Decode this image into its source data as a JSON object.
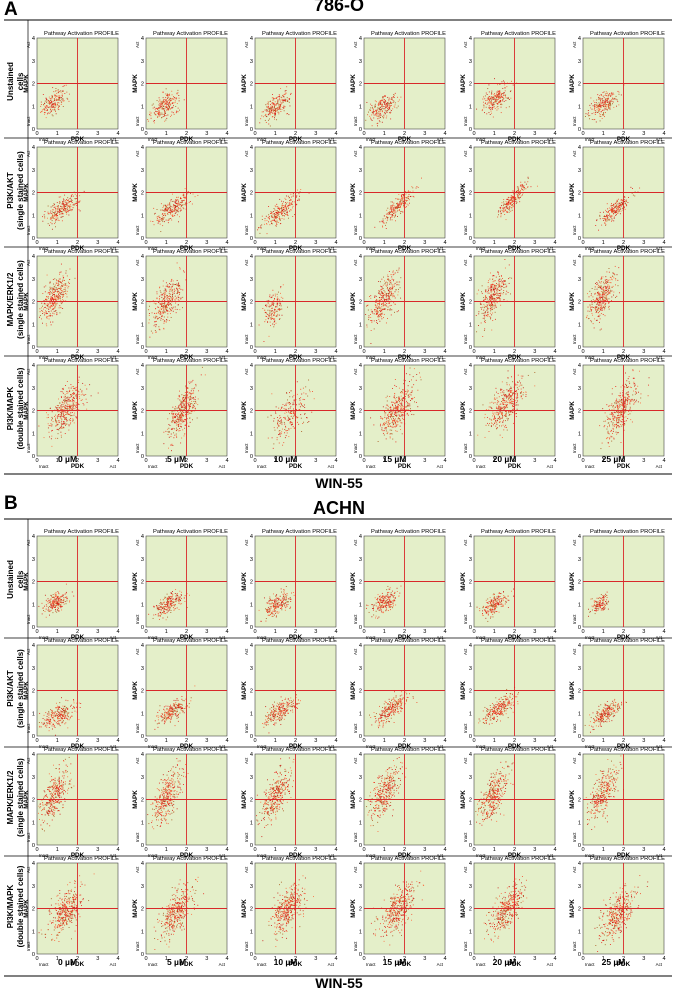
{
  "figure": {
    "panels": [
      {
        "letter": "A",
        "cell_line": "786-O",
        "compound": "WIN-55",
        "columns": [
          "0 µM",
          "5 µM",
          "10 µM",
          "15 µM",
          "20 µM",
          "25 µM"
        ],
        "rows": [
          [
            "Unstained",
            "cells"
          ],
          [
            "PI3K/AKT",
            "(single stained cells)"
          ],
          [
            "MAPK/ERK1/2",
            "(single stained cells)"
          ],
          [
            "PI3K/MAPK",
            "(double stained cells)"
          ]
        ]
      },
      {
        "letter": "B",
        "cell_line": "ACHN",
        "compound": "WIN-55",
        "columns": [
          "0 µM",
          "5 µM",
          "10 µM",
          "15 µM",
          "20 µM",
          "25 µM"
        ],
        "rows": [
          [
            "Unstained",
            "cells"
          ],
          [
            "PI3K/AKT",
            "(single stained cells)"
          ],
          [
            "MAPK/ERK1/2",
            "(single stained cells)"
          ],
          [
            "PI3K/MAPK",
            "(double stained cells)"
          ]
        ]
      }
    ],
    "plot": {
      "title": "Pathway Activation PROFILE",
      "xlabel": "PDK",
      "ylabel": "MAPK",
      "xlim": [
        0,
        4
      ],
      "ylim": [
        0,
        4
      ],
      "ticks": [
        "0",
        "1",
        "2",
        "3",
        "4"
      ],
      "x_low_label": "Inact",
      "x_high_label": "Act",
      "y_low_label": "Inact",
      "y_high_label": "Act",
      "quadrant_threshold": [
        2,
        2
      ]
    },
    "colors": {
      "plot_bg": "#e4efc9",
      "quadrant_line": "#d8282a",
      "dots": [
        "#e8201a",
        "#f24a2a",
        "#c81612",
        "#ff6a3c",
        "#a85a1e"
      ]
    }
  },
  "chart_data": [
    {
      "type": "scatter",
      "panel": "A",
      "title": "786-O",
      "xlabel": "PDK",
      "ylabel": "MAPK",
      "xlim": [
        0,
        4
      ],
      "ylim": [
        0,
        4
      ],
      "grid": false,
      "quadrant_threshold": [
        2,
        2
      ],
      "columns": [
        "0 µM",
        "5 µM",
        "10 µM",
        "15 µM",
        "20 µM",
        "25 µM"
      ],
      "rows": [
        "Unstained cells",
        "PI3K/AKT (single stained cells)",
        "MAPK/ERK1/2 (single stained cells)",
        "PI3K/MAPK (double stained cells)"
      ],
      "clusters": [
        [
          {
            "cx": 0.8,
            "cy": 1.2,
            "sx": 0.32,
            "sy": 0.28,
            "corr": 0.55,
            "n": 190
          },
          {
            "cx": 1.0,
            "cy": 1.05,
            "sx": 0.36,
            "sy": 0.3,
            "corr": 0.55,
            "n": 230
          },
          {
            "cx": 1.0,
            "cy": 1.0,
            "sx": 0.34,
            "sy": 0.3,
            "corr": 0.55,
            "n": 220
          },
          {
            "cx": 0.9,
            "cy": 0.95,
            "sx": 0.35,
            "sy": 0.28,
            "corr": 0.5,
            "n": 220
          },
          {
            "cx": 1.0,
            "cy": 1.35,
            "sx": 0.36,
            "sy": 0.3,
            "corr": 0.55,
            "n": 230
          },
          {
            "cx": 1.0,
            "cy": 1.15,
            "sx": 0.36,
            "sy": 0.3,
            "corr": 0.55,
            "n": 230
          }
        ],
        [
          {
            "cx": 1.2,
            "cy": 1.3,
            "sx": 0.42,
            "sy": 0.32,
            "corr": 0.7,
            "n": 250
          },
          {
            "cx": 1.3,
            "cy": 1.3,
            "sx": 0.42,
            "sy": 0.34,
            "corr": 0.75,
            "n": 250
          },
          {
            "cx": 1.25,
            "cy": 1.2,
            "sx": 0.45,
            "sy": 0.35,
            "corr": 0.75,
            "n": 250
          },
          {
            "cx": 1.6,
            "cy": 1.4,
            "sx": 0.4,
            "sy": 0.38,
            "corr": 0.85,
            "n": 220
          },
          {
            "cx": 1.9,
            "cy": 1.7,
            "sx": 0.38,
            "sy": 0.38,
            "corr": 0.88,
            "n": 220
          },
          {
            "cx": 1.6,
            "cy": 1.3,
            "sx": 0.38,
            "sy": 0.3,
            "corr": 0.8,
            "n": 220
          }
        ],
        [
          {
            "cx": 0.85,
            "cy": 2.2,
            "sx": 0.35,
            "sy": 0.55,
            "corr": 0.6,
            "n": 330
          },
          {
            "cx": 1.0,
            "cy": 2.0,
            "sx": 0.4,
            "sy": 0.55,
            "corr": 0.6,
            "n": 330
          },
          {
            "cx": 0.9,
            "cy": 1.7,
            "sx": 0.25,
            "sy": 0.45,
            "corr": 0.5,
            "n": 150
          },
          {
            "cx": 0.95,
            "cy": 2.1,
            "sx": 0.38,
            "sy": 0.55,
            "corr": 0.6,
            "n": 330
          },
          {
            "cx": 0.95,
            "cy": 2.3,
            "sx": 0.38,
            "sy": 0.55,
            "corr": 0.6,
            "n": 330
          },
          {
            "cx": 0.9,
            "cy": 2.2,
            "sx": 0.36,
            "sy": 0.55,
            "corr": 0.6,
            "n": 330
          }
        ],
        [
          {
            "cx": 1.4,
            "cy": 2.1,
            "sx": 0.42,
            "sy": 0.55,
            "corr": 0.6,
            "n": 370
          },
          {
            "cx": 1.8,
            "cy": 2.0,
            "sx": 0.35,
            "sy": 0.6,
            "corr": 0.6,
            "n": 370
          },
          {
            "cx": 1.7,
            "cy": 1.8,
            "sx": 0.45,
            "sy": 0.55,
            "corr": 0.4,
            "n": 220
          },
          {
            "cx": 1.6,
            "cy": 2.0,
            "sx": 0.42,
            "sy": 0.6,
            "corr": 0.6,
            "n": 370
          },
          {
            "cx": 1.55,
            "cy": 2.2,
            "sx": 0.45,
            "sy": 0.58,
            "corr": 0.6,
            "n": 370
          },
          {
            "cx": 1.9,
            "cy": 2.1,
            "sx": 0.4,
            "sy": 0.6,
            "corr": 0.6,
            "n": 370
          }
        ]
      ]
    },
    {
      "type": "scatter",
      "panel": "B",
      "title": "ACHN",
      "xlabel": "PDK",
      "ylabel": "MAPK",
      "xlim": [
        0,
        4
      ],
      "ylim": [
        0,
        4
      ],
      "grid": false,
      "quadrant_threshold": [
        2,
        2
      ],
      "columns": [
        "0 µM",
        "5 µM",
        "10 µM",
        "15 µM",
        "20 µM",
        "25 µM"
      ],
      "rows": [
        "Unstained cells",
        "PI3K/AKT (single stained cells)",
        "MAPK/ERK1/2 (single stained cells)",
        "PI3K/MAPK (double stained cells)"
      ],
      "clusters": [
        [
          {
            "cx": 0.9,
            "cy": 1.1,
            "sx": 0.32,
            "sy": 0.25,
            "corr": 0.55,
            "n": 210
          },
          {
            "cx": 1.1,
            "cy": 1.0,
            "sx": 0.34,
            "sy": 0.27,
            "corr": 0.55,
            "n": 220
          },
          {
            "cx": 1.1,
            "cy": 1.05,
            "sx": 0.34,
            "sy": 0.27,
            "corr": 0.55,
            "n": 220
          },
          {
            "cx": 1.0,
            "cy": 1.1,
            "sx": 0.33,
            "sy": 0.27,
            "corr": 0.55,
            "n": 220
          },
          {
            "cx": 1.0,
            "cy": 1.0,
            "sx": 0.33,
            "sy": 0.26,
            "corr": 0.55,
            "n": 210
          },
          {
            "cx": 0.8,
            "cy": 1.0,
            "sx": 0.22,
            "sy": 0.2,
            "corr": 0.5,
            "n": 130
          }
        ],
        [
          {
            "cx": 1.0,
            "cy": 0.9,
            "sx": 0.45,
            "sy": 0.28,
            "corr": 0.6,
            "n": 250
          },
          {
            "cx": 1.3,
            "cy": 1.1,
            "sx": 0.38,
            "sy": 0.28,
            "corr": 0.7,
            "n": 230
          },
          {
            "cx": 1.2,
            "cy": 1.1,
            "sx": 0.42,
            "sy": 0.3,
            "corr": 0.7,
            "n": 250
          },
          {
            "cx": 1.3,
            "cy": 1.2,
            "sx": 0.4,
            "sy": 0.32,
            "corr": 0.75,
            "n": 250
          },
          {
            "cx": 1.2,
            "cy": 1.2,
            "sx": 0.4,
            "sy": 0.32,
            "corr": 0.75,
            "n": 250
          },
          {
            "cx": 1.1,
            "cy": 1.0,
            "sx": 0.38,
            "sy": 0.28,
            "corr": 0.7,
            "n": 240
          }
        ],
        [
          {
            "cx": 0.85,
            "cy": 2.2,
            "sx": 0.36,
            "sy": 0.6,
            "corr": 0.65,
            "n": 340
          },
          {
            "cx": 1.0,
            "cy": 2.1,
            "sx": 0.38,
            "sy": 0.6,
            "corr": 0.65,
            "n": 340
          },
          {
            "cx": 1.0,
            "cy": 2.2,
            "sx": 0.38,
            "sy": 0.6,
            "corr": 0.65,
            "n": 340
          },
          {
            "cx": 1.0,
            "cy": 2.3,
            "sx": 0.38,
            "sy": 0.6,
            "corr": 0.65,
            "n": 340
          },
          {
            "cx": 0.95,
            "cy": 2.2,
            "sx": 0.36,
            "sy": 0.6,
            "corr": 0.65,
            "n": 340
          },
          {
            "cx": 0.95,
            "cy": 2.3,
            "sx": 0.36,
            "sy": 0.6,
            "corr": 0.65,
            "n": 320
          }
        ],
        [
          {
            "cx": 1.4,
            "cy": 1.9,
            "sx": 0.4,
            "sy": 0.55,
            "corr": 0.6,
            "n": 370
          },
          {
            "cx": 1.5,
            "cy": 1.9,
            "sx": 0.4,
            "sy": 0.55,
            "corr": 0.6,
            "n": 370
          },
          {
            "cx": 1.6,
            "cy": 2.0,
            "sx": 0.4,
            "sy": 0.55,
            "corr": 0.6,
            "n": 370
          },
          {
            "cx": 1.65,
            "cy": 2.0,
            "sx": 0.4,
            "sy": 0.55,
            "corr": 0.6,
            "n": 370
          },
          {
            "cx": 1.6,
            "cy": 2.0,
            "sx": 0.42,
            "sy": 0.55,
            "corr": 0.6,
            "n": 370
          },
          {
            "cx": 1.7,
            "cy": 1.8,
            "sx": 0.42,
            "sy": 0.55,
            "corr": 0.6,
            "n": 370
          }
        ]
      ]
    }
  ]
}
